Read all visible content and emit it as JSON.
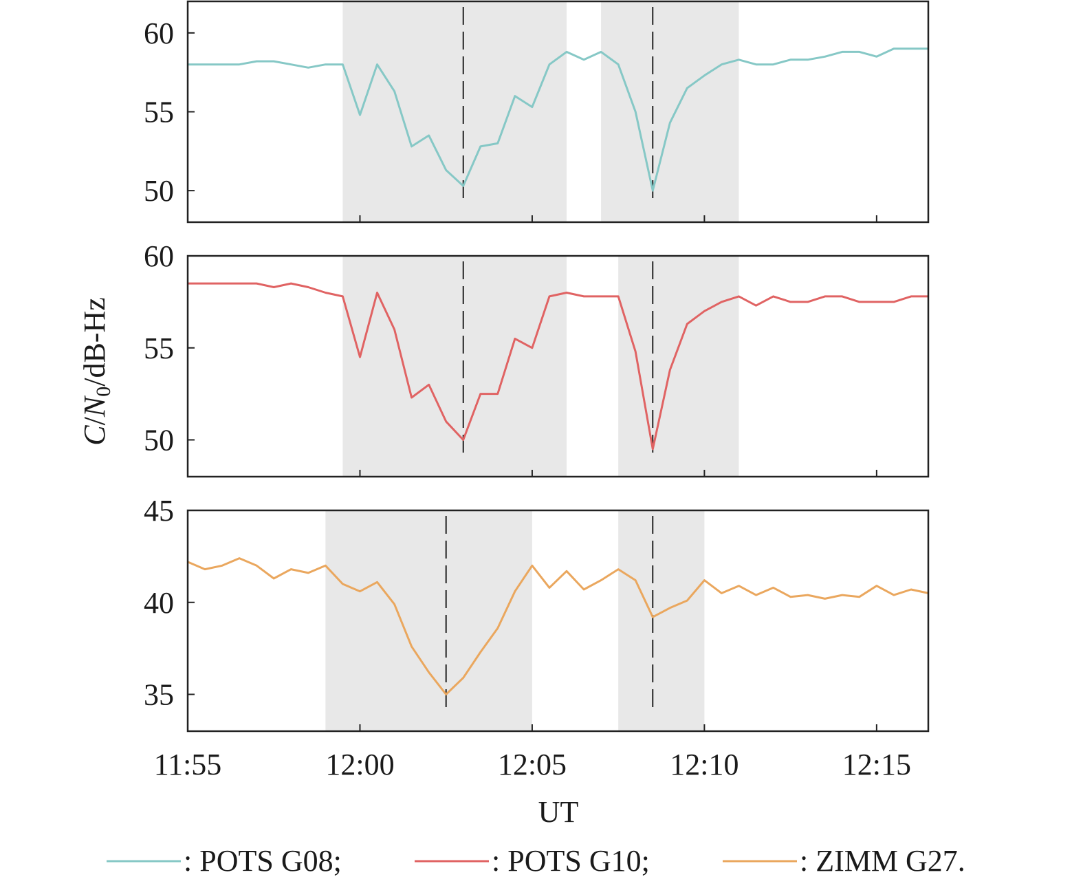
{
  "chart_data": {
    "type": "line",
    "xlabel": "UT",
    "ylabel_parts": [
      "C",
      "/",
      "N",
      "0",
      "/dB-Hz"
    ],
    "x_range": [
      "11:55",
      "12:16:30"
    ],
    "x_ticks": [
      "11:55",
      "12:00",
      "12:05",
      "12:10",
      "12:15"
    ],
    "legend": [
      {
        "label": ": POTS G08;",
        "color": "#86c8c6"
      },
      {
        "label": ": POTS G10;",
        "color": "#e06363"
      },
      {
        "label": ": ZIMM G27.",
        "color": "#eaa75e"
      }
    ],
    "panels": [
      {
        "series": "POTS G08",
        "color": "#86c8c6",
        "ylim": [
          48,
          62
        ],
        "y_ticks": [
          "50",
          "55",
          "60"
        ],
        "shaded": [
          [
            "11:59:30",
            "12:06:00"
          ],
          [
            "12:07:00",
            "12:11:00"
          ]
        ],
        "dashed": [
          "12:03:00",
          "12:08:30"
        ],
        "points": [
          [
            "11:55:00",
            58
          ],
          [
            "11:55:30",
            58
          ],
          [
            "11:56:00",
            58
          ],
          [
            "11:56:30",
            58
          ],
          [
            "11:57:00",
            58.2
          ],
          [
            "11:57:30",
            58.2
          ],
          [
            "11:58:00",
            58
          ],
          [
            "11:58:30",
            57.8
          ],
          [
            "11:59:00",
            58
          ],
          [
            "11:59:30",
            58
          ],
          [
            "12:00:00",
            54.8
          ],
          [
            "12:00:30",
            58
          ],
          [
            "12:01:00",
            56.3
          ],
          [
            "12:01:30",
            52.8
          ],
          [
            "12:02:00",
            53.5
          ],
          [
            "12:02:30",
            51.3
          ],
          [
            "12:03:00",
            50.3
          ],
          [
            "12:03:30",
            52.8
          ],
          [
            "12:04:00",
            53
          ],
          [
            "12:04:30",
            56
          ],
          [
            "12:05:00",
            55.3
          ],
          [
            "12:05:30",
            58
          ],
          [
            "12:06:00",
            58.8
          ],
          [
            "12:06:30",
            58.3
          ],
          [
            "12:07:00",
            58.8
          ],
          [
            "12:07:30",
            58
          ],
          [
            "12:08:00",
            55
          ],
          [
            "12:08:30",
            50
          ],
          [
            "12:09:00",
            54.3
          ],
          [
            "12:09:30",
            56.5
          ],
          [
            "12:10:00",
            57.3
          ],
          [
            "12:10:30",
            58
          ],
          [
            "12:11:00",
            58.3
          ],
          [
            "12:11:30",
            58
          ],
          [
            "12:12:00",
            58
          ],
          [
            "12:12:30",
            58.3
          ],
          [
            "12:13:00",
            58.3
          ],
          [
            "12:13:30",
            58.5
          ],
          [
            "12:14:00",
            58.8
          ],
          [
            "12:14:30",
            58.8
          ],
          [
            "12:15:00",
            58.5
          ],
          [
            "12:15:30",
            59
          ],
          [
            "12:16:00",
            59
          ],
          [
            "12:16:30",
            59
          ]
        ]
      },
      {
        "series": "POTS G10",
        "color": "#e06363",
        "ylim": [
          48,
          60
        ],
        "y_ticks": [
          "50",
          "55",
          "60"
        ],
        "shaded": [
          [
            "11:59:30",
            "12:06:00"
          ],
          [
            "12:07:30",
            "12:11:00"
          ]
        ],
        "dashed": [
          "12:03:00",
          "12:08:30"
        ],
        "points": [
          [
            "11:55:00",
            58.5
          ],
          [
            "11:55:30",
            58.5
          ],
          [
            "11:56:00",
            58.5
          ],
          [
            "11:56:30",
            58.5
          ],
          [
            "11:57:00",
            58.5
          ],
          [
            "11:57:30",
            58.3
          ],
          [
            "11:58:00",
            58.5
          ],
          [
            "11:58:30",
            58.3
          ],
          [
            "11:59:00",
            58
          ],
          [
            "11:59:30",
            57.8
          ],
          [
            "12:00:00",
            54.5
          ],
          [
            "12:00:30",
            58
          ],
          [
            "12:01:00",
            56
          ],
          [
            "12:01:30",
            52.3
          ],
          [
            "12:02:00",
            53
          ],
          [
            "12:02:30",
            51
          ],
          [
            "12:03:00",
            50
          ],
          [
            "12:03:30",
            52.5
          ],
          [
            "12:04:00",
            52.5
          ],
          [
            "12:04:30",
            55.5
          ],
          [
            "12:05:00",
            55
          ],
          [
            "12:05:30",
            57.8
          ],
          [
            "12:06:00",
            58
          ],
          [
            "12:06:30",
            57.8
          ],
          [
            "12:07:00",
            57.8
          ],
          [
            "12:07:30",
            57.8
          ],
          [
            "12:08:00",
            54.8
          ],
          [
            "12:08:30",
            49.5
          ],
          [
            "12:09:00",
            53.8
          ],
          [
            "12:09:30",
            56.3
          ],
          [
            "12:10:00",
            57
          ],
          [
            "12:10:30",
            57.5
          ],
          [
            "12:11:00",
            57.8
          ],
          [
            "12:11:30",
            57.3
          ],
          [
            "12:12:00",
            57.8
          ],
          [
            "12:12:30",
            57.5
          ],
          [
            "12:13:00",
            57.5
          ],
          [
            "12:13:30",
            57.8
          ],
          [
            "12:14:00",
            57.8
          ],
          [
            "12:14:30",
            57.5
          ],
          [
            "12:15:00",
            57.5
          ],
          [
            "12:15:30",
            57.5
          ],
          [
            "12:16:00",
            57.8
          ],
          [
            "12:16:30",
            57.8
          ]
        ]
      },
      {
        "series": "ZIMM G27",
        "color": "#eaa75e",
        "ylim": [
          33,
          45
        ],
        "y_ticks": [
          "35",
          "40",
          "45"
        ],
        "shaded": [
          [
            "11:59:00",
            "12:05:00"
          ],
          [
            "12:07:30",
            "12:10:00"
          ]
        ],
        "dashed": [
          "12:02:30",
          "12:08:30"
        ],
        "points": [
          [
            "11:55:00",
            42.2
          ],
          [
            "11:55:30",
            41.8
          ],
          [
            "11:56:00",
            42
          ],
          [
            "11:56:30",
            42.4
          ],
          [
            "11:57:00",
            42
          ],
          [
            "11:57:30",
            41.3
          ],
          [
            "11:58:00",
            41.8
          ],
          [
            "11:58:30",
            41.6
          ],
          [
            "11:59:00",
            42
          ],
          [
            "11:59:30",
            41
          ],
          [
            "12:00:00",
            40.6
          ],
          [
            "12:00:30",
            41.1
          ],
          [
            "12:01:00",
            39.9
          ],
          [
            "12:01:30",
            37.6
          ],
          [
            "12:02:00",
            36.2
          ],
          [
            "12:02:30",
            35
          ],
          [
            "12:03:00",
            35.9
          ],
          [
            "12:03:30",
            37.3
          ],
          [
            "12:04:00",
            38.6
          ],
          [
            "12:04:30",
            40.6
          ],
          [
            "12:05:00",
            42
          ],
          [
            "12:05:30",
            40.8
          ],
          [
            "12:06:00",
            41.7
          ],
          [
            "12:06:30",
            40.7
          ],
          [
            "12:07:00",
            41.2
          ],
          [
            "12:07:30",
            41.8
          ],
          [
            "12:08:00",
            41.2
          ],
          [
            "12:08:30",
            39.2
          ],
          [
            "12:09:00",
            39.7
          ],
          [
            "12:09:30",
            40.1
          ],
          [
            "12:10:00",
            41.2
          ],
          [
            "12:10:30",
            40.5
          ],
          [
            "12:11:00",
            40.9
          ],
          [
            "12:11:30",
            40.4
          ],
          [
            "12:12:00",
            40.8
          ],
          [
            "12:12:30",
            40.3
          ],
          [
            "12:13:00",
            40.4
          ],
          [
            "12:13:30",
            40.2
          ],
          [
            "12:14:00",
            40.4
          ],
          [
            "12:14:30",
            40.3
          ],
          [
            "12:15:00",
            40.9
          ],
          [
            "12:15:30",
            40.4
          ],
          [
            "12:16:00",
            40.7
          ],
          [
            "12:16:30",
            40.5
          ]
        ]
      }
    ]
  }
}
